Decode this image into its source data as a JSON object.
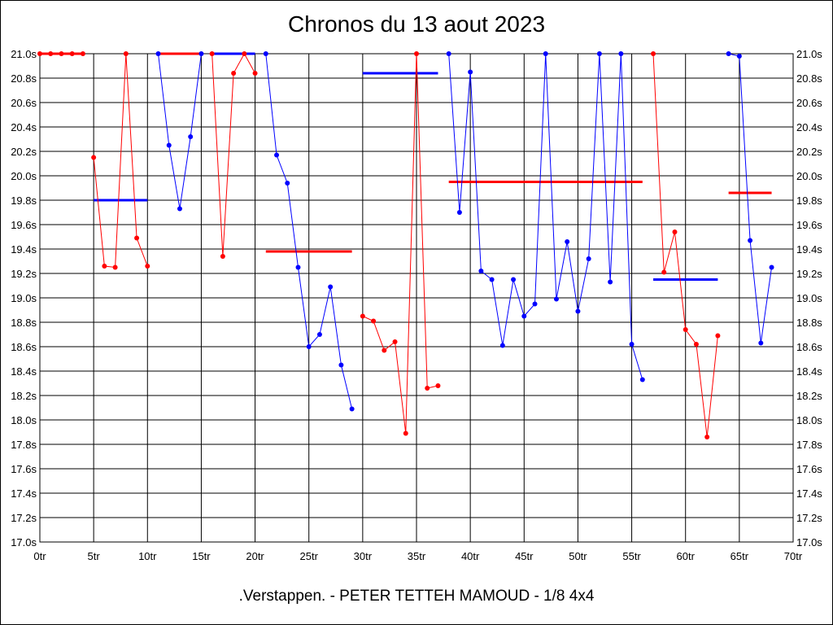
{
  "title": "Chronos du 13 aout 2023",
  "subtitle": ".Verstappen. - PETER TETTEH MAMOUD - 1/8 4x4",
  "chart_data": {
    "type": "line",
    "title": "Chronos du 13 aout 2023",
    "xlabel": "",
    "ylabel": "",
    "xlim": [
      0,
      70
    ],
    "ylim": [
      17.0,
      21.0
    ],
    "grid": true,
    "x_tick_labels": [
      "0tr",
      "5tr",
      "10tr",
      "15tr",
      "20tr",
      "25tr",
      "30tr",
      "35tr",
      "40tr",
      "45tr",
      "50tr",
      "55tr",
      "60tr",
      "65tr",
      "70tr"
    ],
    "y_tick_labels": [
      "17.0s",
      "17.2s",
      "17.4s",
      "17.6s",
      "17.8s",
      "18.0s",
      "18.2s",
      "18.4s",
      "18.6s",
      "18.8s",
      "19.0s",
      "19.2s",
      "19.4s",
      "19.6s",
      "19.8s",
      "20.0s",
      "20.2s",
      "20.4s",
      "20.6s",
      "20.8s",
      "21.0s"
    ],
    "series": [
      {
        "color": "#ff0000",
        "points": [
          [
            0,
            21.0
          ],
          [
            1,
            21.0
          ],
          [
            2,
            21.0
          ],
          [
            3,
            21.0
          ],
          [
            4,
            21.0
          ]
        ]
      },
      {
        "color": "#ff0000",
        "points": [
          [
            5,
            20.15
          ],
          [
            6,
            19.26
          ],
          [
            7,
            19.25
          ],
          [
            8,
            21.0
          ],
          [
            9,
            19.49
          ],
          [
            10,
            19.26
          ]
        ]
      },
      {
        "color": "#0000ff",
        "points": [
          [
            11,
            21.0
          ],
          [
            12,
            20.25
          ],
          [
            13,
            19.73
          ],
          [
            14,
            20.32
          ],
          [
            15,
            21.0
          ]
        ]
      },
      {
        "color": "#ff0000",
        "points": [
          [
            16,
            21.0
          ],
          [
            17,
            19.34
          ],
          [
            18,
            20.84
          ],
          [
            19,
            21.0
          ],
          [
            20,
            20.84
          ]
        ]
      },
      {
        "color": "#0000ff",
        "points": [
          [
            21,
            21.0
          ],
          [
            22,
            20.17
          ],
          [
            23,
            19.94
          ],
          [
            24,
            19.25
          ],
          [
            25,
            18.6
          ],
          [
            26,
            18.7
          ],
          [
            27,
            19.09
          ],
          [
            28,
            18.45
          ],
          [
            29,
            18.09
          ]
        ]
      },
      {
        "color": "#ff0000",
        "points": [
          [
            30,
            18.85
          ],
          [
            31,
            18.81
          ],
          [
            32,
            18.57
          ],
          [
            33,
            18.64
          ],
          [
            34,
            17.89
          ],
          [
            35,
            21.0
          ],
          [
            36,
            18.26
          ],
          [
            37,
            18.28
          ]
        ]
      },
      {
        "color": "#0000ff",
        "points": [
          [
            38,
            21.0
          ],
          [
            39,
            19.7
          ],
          [
            40,
            20.85
          ],
          [
            41,
            19.22
          ],
          [
            42,
            19.15
          ],
          [
            43,
            18.61
          ],
          [
            44,
            19.15
          ],
          [
            45,
            18.85
          ],
          [
            46,
            18.95
          ],
          [
            47,
            21.0
          ],
          [
            48,
            18.99
          ],
          [
            49,
            19.46
          ],
          [
            50,
            18.89
          ],
          [
            51,
            19.32
          ],
          [
            52,
            21.0
          ],
          [
            53,
            19.13
          ],
          [
            54,
            21.0
          ],
          [
            55,
            18.62
          ],
          [
            56,
            18.33
          ]
        ]
      },
      {
        "color": "#ff0000",
        "points": [
          [
            57,
            21.0
          ],
          [
            58,
            19.21
          ],
          [
            59,
            19.54
          ],
          [
            60,
            18.74
          ],
          [
            61,
            18.62
          ],
          [
            62,
            17.86
          ],
          [
            63,
            18.69
          ]
        ]
      },
      {
        "color": "#0000ff",
        "points": [
          [
            64,
            21.0
          ],
          [
            65,
            20.98
          ],
          [
            66,
            19.47
          ],
          [
            67,
            18.63
          ],
          [
            68,
            19.25
          ]
        ]
      }
    ],
    "averages": [
      {
        "color": "#ff0000",
        "x_start": 0,
        "x_end": 4,
        "value": 21.0
      },
      {
        "color": "#0000ff",
        "x_start": 5,
        "x_end": 10,
        "value": 19.8
      },
      {
        "color": "#ff0000",
        "x_start": 11,
        "x_end": 15,
        "value": 21.0
      },
      {
        "color": "#0000ff",
        "x_start": 16,
        "x_end": 20,
        "value": 21.0
      },
      {
        "color": "#ff0000",
        "x_start": 21,
        "x_end": 29,
        "value": 19.38
      },
      {
        "color": "#0000ff",
        "x_start": 30,
        "x_end": 37,
        "value": 20.84
      },
      {
        "color": "#ff0000",
        "x_start": 38,
        "x_end": 56,
        "value": 19.95
      },
      {
        "color": "#0000ff",
        "x_start": 57,
        "x_end": 63,
        "value": 19.15
      },
      {
        "color": "#ff0000",
        "x_start": 64,
        "x_end": 68,
        "value": 19.86
      }
    ]
  }
}
